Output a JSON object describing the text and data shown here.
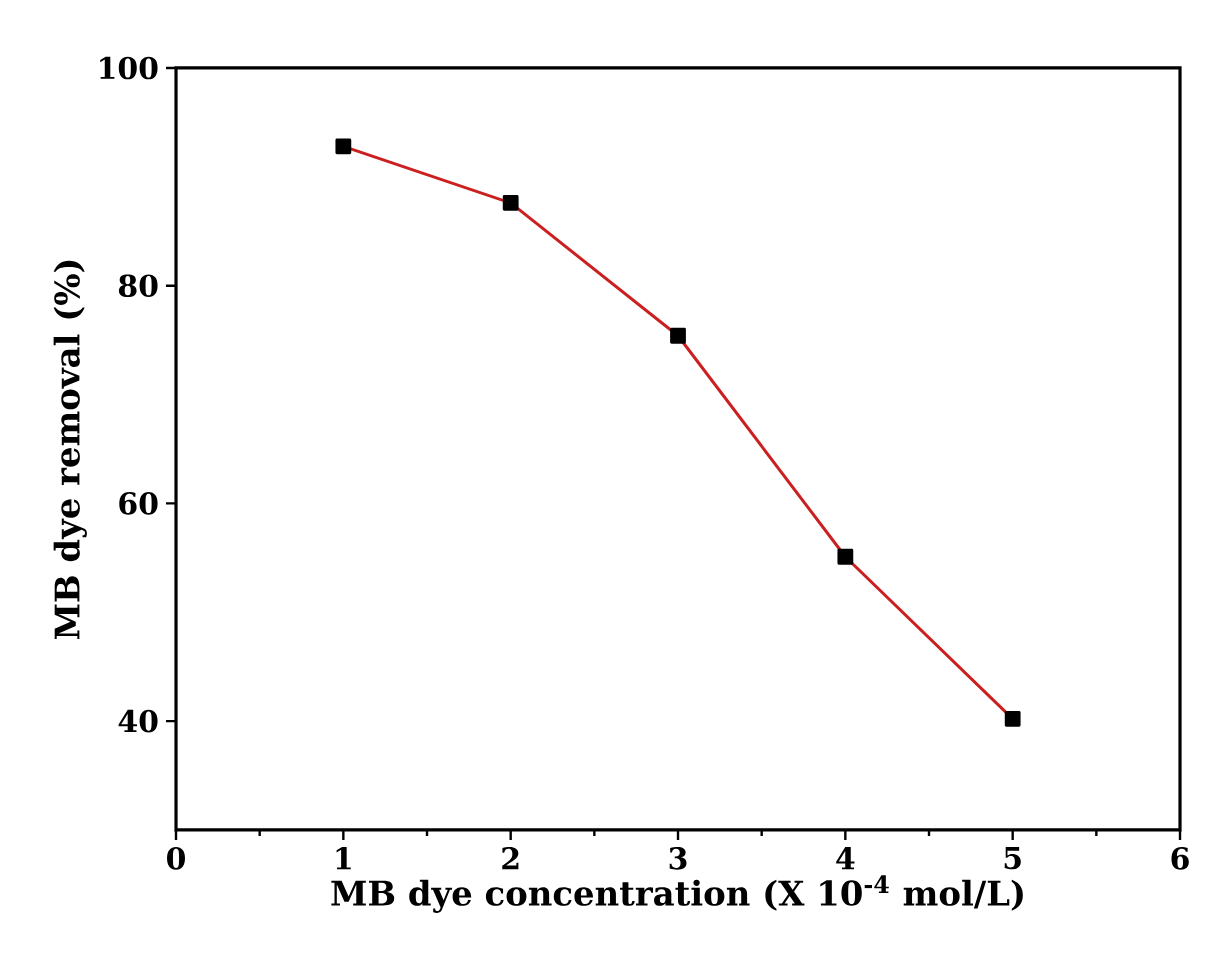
{
  "chart_data": {
    "type": "line",
    "xlabel": "MB dye concentration (X 10$^{-4}$ mol/L)",
    "ylabel": "MB dye removal (%)",
    "x": [
      1,
      2,
      3,
      4,
      5
    ],
    "series": [
      {
        "color": "#cc1f1f",
        "values": [
          92.8,
          87.6,
          75.4,
          55.1,
          40.2
        ]
      }
    ],
    "xlim": [
      0,
      6
    ],
    "xticks": [
      0,
      1,
      2,
      3,
      4,
      5,
      6
    ],
    "ylim": [
      30,
      100
    ],
    "yticks": [
      40,
      60,
      80,
      100
    ],
    "marker": "square",
    "line_style": "solid"
  }
}
